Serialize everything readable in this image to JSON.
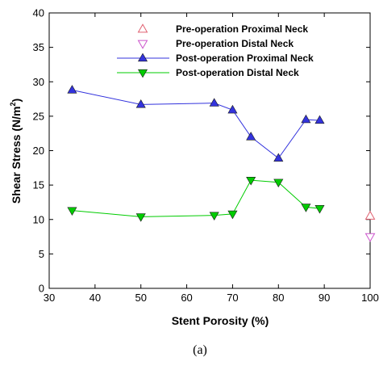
{
  "chart_data": {
    "type": "scatter",
    "xlabel": "Stent Porosity (%)",
    "ylabel": "Shear Stress (N/m",
    "ylabel_sup": "2",
    "ylabel_end": ")",
    "xlim": [
      30,
      100
    ],
    "ylim": [
      0,
      40
    ],
    "xticks": [
      "30",
      "40",
      "50",
      "60",
      "70",
      "80",
      "90",
      "100"
    ],
    "yticks": [
      "0",
      "5",
      "10",
      "15",
      "20",
      "25",
      "30",
      "35",
      "40"
    ],
    "legend_position": "top-right",
    "grid": false,
    "series": [
      {
        "name": "Pre-operation Proximal Neck",
        "marker": "triangle-up-open",
        "color": "#e06070",
        "line": false,
        "x": [
          100
        ],
        "y": [
          10.5
        ]
      },
      {
        "name": "Pre-operation Distal Neck",
        "marker": "triangle-down-open",
        "color": "#cc55cc",
        "line": false,
        "x": [
          100
        ],
        "y": [
          7.5
        ]
      },
      {
        "name": "Post-operation Proximal Neck",
        "marker": "triangle-up-filled",
        "color": "#3333dd",
        "line": true,
        "x": [
          35,
          50,
          66,
          70,
          74,
          80,
          86,
          89
        ],
        "y": [
          28.8,
          26.7,
          26.9,
          25.9,
          22.0,
          18.9,
          24.5,
          24.4
        ]
      },
      {
        "name": "Post-operation Distal Neck",
        "marker": "triangle-down-filled",
        "color": "#00cc00",
        "line": true,
        "x": [
          35,
          50,
          66,
          70,
          74,
          80,
          86,
          89
        ],
        "y": [
          11.3,
          10.4,
          10.6,
          10.8,
          15.7,
          15.4,
          11.8,
          11.6
        ]
      }
    ]
  },
  "caption": "(a)"
}
